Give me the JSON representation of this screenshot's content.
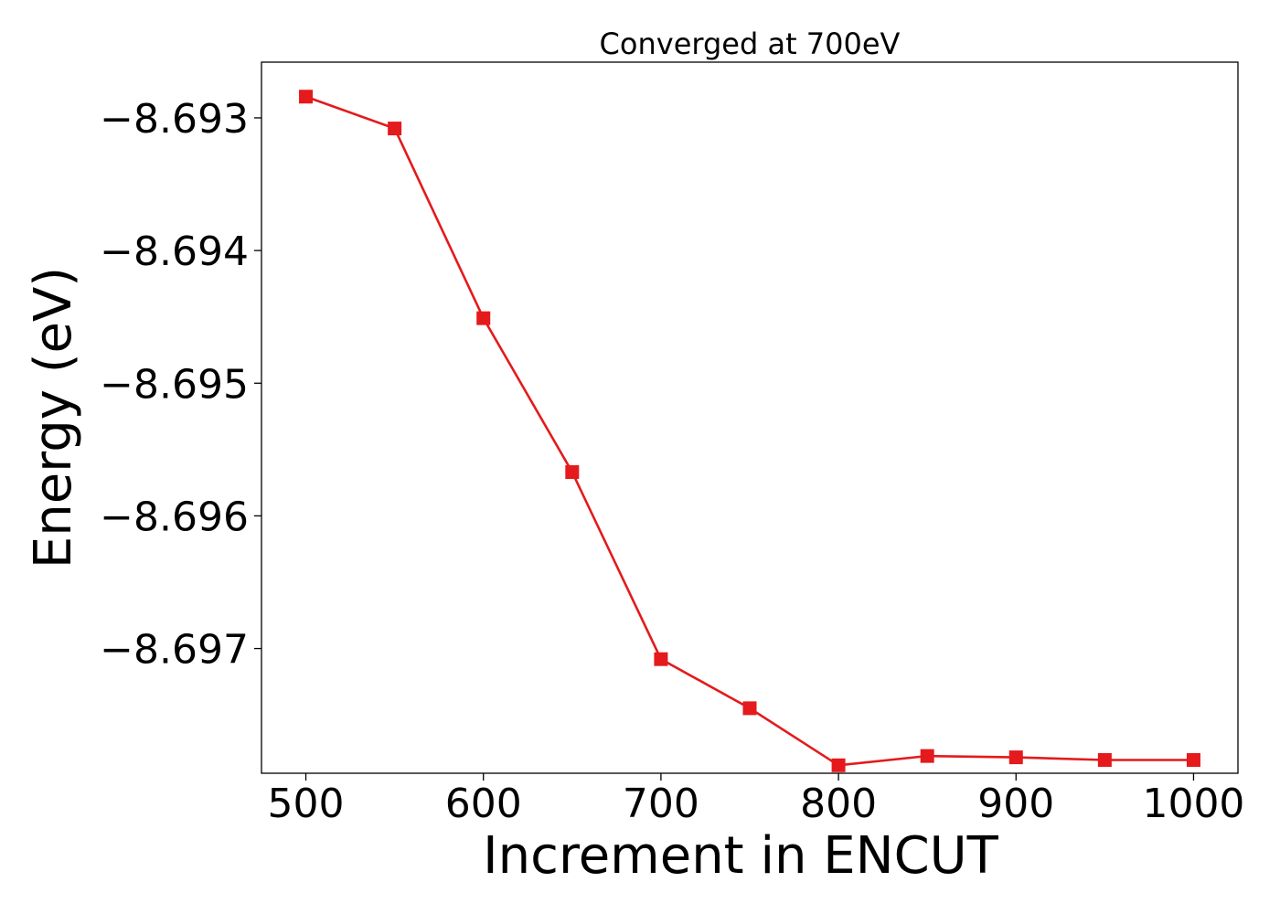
{
  "chart_data": {
    "type": "line",
    "title": "Converged at 700eV",
    "xlabel": "Increment in ENCUT",
    "ylabel": "Energy (eV)",
    "xlim": [
      475,
      1025
    ],
    "ylim": [
      -8.69794,
      -8.69258
    ],
    "x_ticks": [
      500,
      600,
      700,
      800,
      900,
      1000
    ],
    "x_tick_labels": [
      "500",
      "600",
      "700",
      "800",
      "900",
      "1000"
    ],
    "y_ticks": [
      -8.693,
      -8.694,
      -8.695,
      -8.696,
      -8.697
    ],
    "y_tick_labels": [
      "−8.693",
      "−8.694",
      "−8.695",
      "−8.696",
      "−8.697"
    ],
    "grid": false,
    "legend": "none",
    "series": [
      {
        "color": "#e41a1c",
        "marker": "square",
        "x": [
          500,
          550,
          600,
          650,
          700,
          750,
          800,
          850,
          900,
          950,
          1000
        ],
        "y": [
          -8.69284,
          -8.69308,
          -8.69451,
          -8.69567,
          -8.69708,
          -8.69745,
          -8.69788,
          -8.69781,
          -8.69782,
          -8.69784,
          -8.69784
        ]
      }
    ]
  }
}
